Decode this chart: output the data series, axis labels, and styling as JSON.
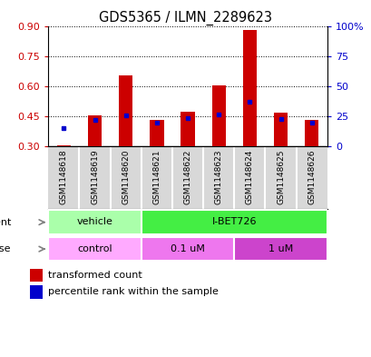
{
  "title": "GDS5365 / ILMN_2289623",
  "samples": [
    "GSM1148618",
    "GSM1148619",
    "GSM1148620",
    "GSM1148621",
    "GSM1148622",
    "GSM1148623",
    "GSM1148624",
    "GSM1148625",
    "GSM1148626"
  ],
  "transformed_count": [
    0.305,
    0.455,
    0.655,
    0.432,
    0.473,
    0.608,
    0.885,
    0.468,
    0.432
  ],
  "percentile_rank": [
    15,
    22,
    26,
    20,
    24,
    27,
    37,
    23,
    20
  ],
  "ylim_left": [
    0.3,
    0.9
  ],
  "ylim_right": [
    0,
    100
  ],
  "yticks_left": [
    0.3,
    0.45,
    0.6,
    0.75,
    0.9
  ],
  "yticks_right": [
    0,
    25,
    50,
    75,
    100
  ],
  "bar_color": "#cc0000",
  "dot_color": "#0000cc",
  "agent_labels": [
    "vehicle",
    "I-BET726"
  ],
  "agent_spans": [
    0,
    3,
    9
  ],
  "agent_colors": [
    "#aaffaa",
    "#44ee44"
  ],
  "dose_labels": [
    "control",
    "0.1 uM",
    "1 uM"
  ],
  "dose_spans": [
    0,
    3,
    6,
    9
  ],
  "dose_colors": [
    "#ffaaff",
    "#ee77ee",
    "#cc44cc"
  ],
  "bar_width": 0.45,
  "sample_bg_color": "#d8d8d8",
  "plot_bg_color": "#ffffff",
  "grid_color": "#000000",
  "left_tick_color": "#cc0000",
  "right_tick_color": "#0000cc"
}
